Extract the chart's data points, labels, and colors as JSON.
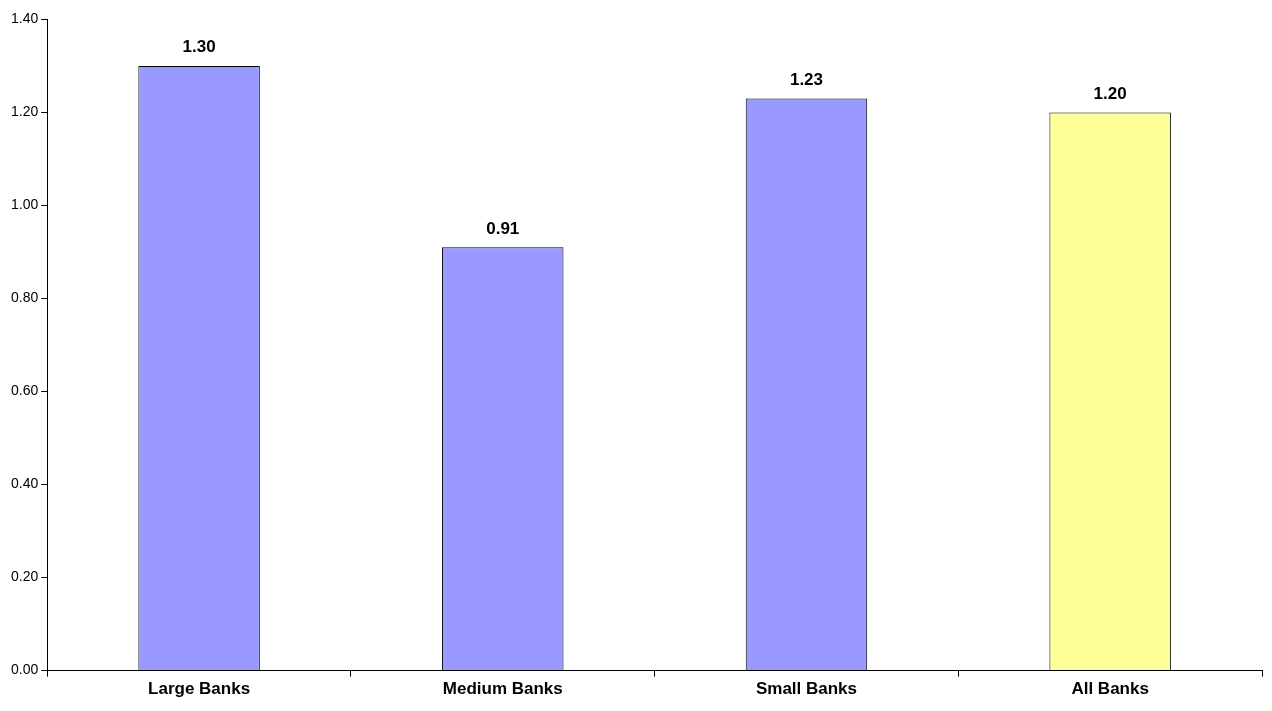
{
  "chart_data": {
    "type": "bar",
    "categories": [
      "Large Banks",
      "Medium Banks",
      "Small Banks",
      "All Banks"
    ],
    "values": [
      1.3,
      0.91,
      1.23,
      1.2
    ],
    "colors": [
      "#9999ff",
      "#9999ff",
      "#9999ff",
      "#ffff99"
    ],
    "value_labels": [
      "1.30",
      "0.91",
      "1.23",
      "1.20"
    ],
    "ylim": [
      0,
      1.4
    ],
    "yticks": [
      {
        "value": 0,
        "label": "0.00"
      },
      {
        "value": 0.2,
        "label": "0.20"
      },
      {
        "value": 0.4,
        "label": "0.40"
      },
      {
        "value": 0.6,
        "label": "0.60"
      },
      {
        "value": 0.8,
        "label": "0.80"
      },
      {
        "value": 1,
        "label": "1.00"
      },
      {
        "value": 1.2,
        "label": "1.20"
      },
      {
        "value": 1.4,
        "label": "1.40"
      }
    ],
    "grid": false,
    "legend": false
  }
}
